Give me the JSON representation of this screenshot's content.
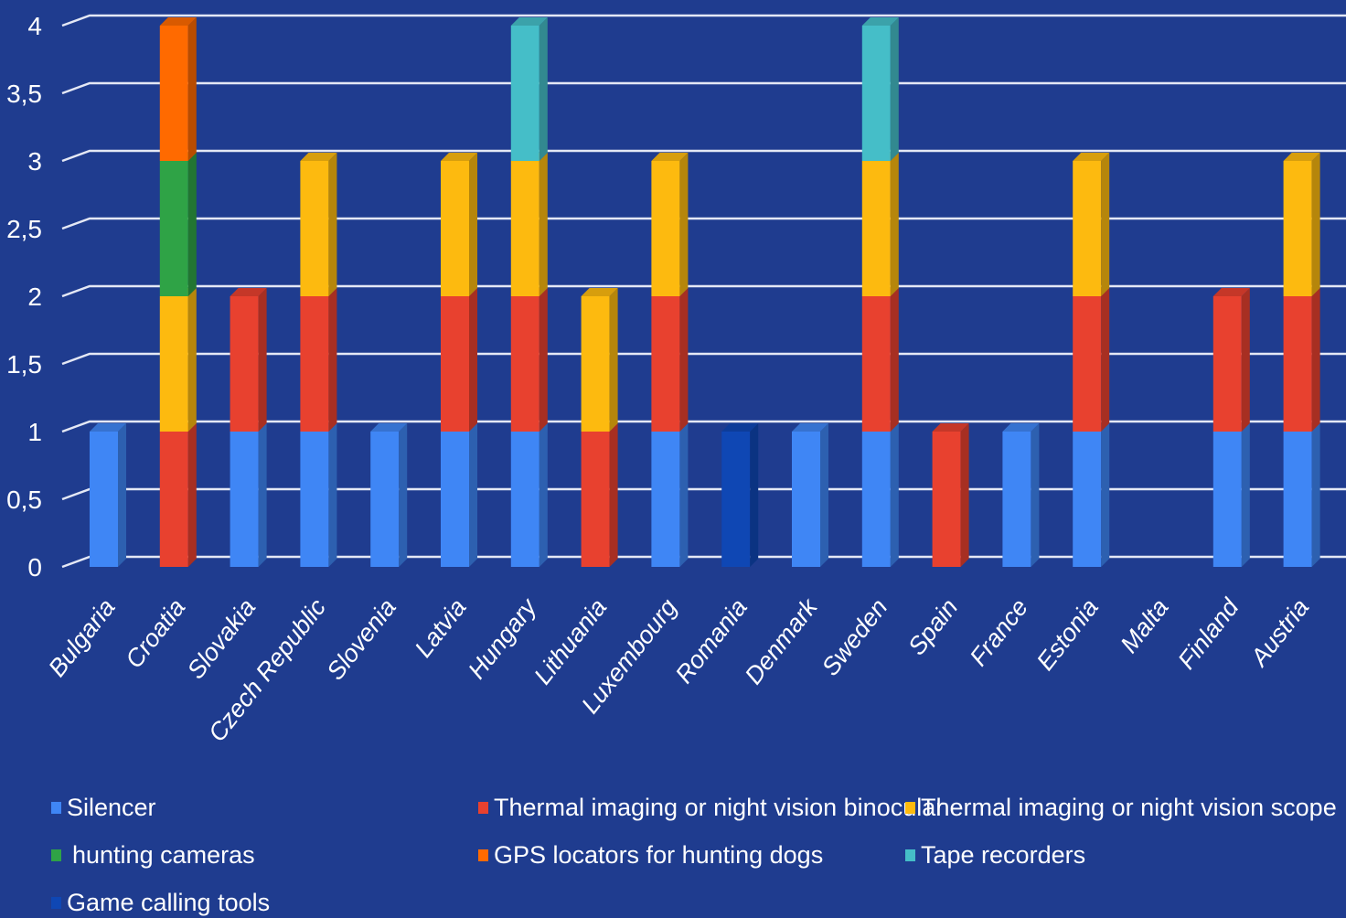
{
  "chart_data": {
    "type": "bar",
    "stacked": true,
    "title": "",
    "xlabel": "",
    "ylabel": "",
    "ylim": [
      0,
      4
    ],
    "yticks": [
      "0",
      "0,5",
      "1",
      "1,5",
      "2",
      "2,5",
      "3",
      "3,5",
      "4"
    ],
    "grid": true,
    "legend_position": "bottom",
    "categories": [
      "Bulgaria",
      "Croatia",
      "Slovakia",
      "Czech Republic",
      "Slovenia",
      "Latvia",
      "Hungary",
      "Lithuania",
      "Luxembourg",
      "Romania",
      "Denmark",
      "Sweden",
      "Spain",
      "France",
      "Estonia",
      "Malta",
      "Finland",
      "Austria"
    ],
    "series": [
      {
        "name": "Silencer",
        "color": "#3f86f5",
        "values": [
          1,
          0,
          1,
          1,
          1,
          1,
          1,
          0,
          1,
          0,
          1,
          1,
          0,
          1,
          1,
          0,
          1,
          1
        ]
      },
      {
        "name": "Thermal imaging or night vision binocular",
        "color": "#e8412f",
        "values": [
          0,
          1,
          1,
          1,
          0,
          1,
          1,
          1,
          1,
          0,
          0,
          1,
          1,
          0,
          1,
          0,
          1,
          1
        ]
      },
      {
        "name": "Thermal imaging or night vision scope",
        "color": "#fdba0f",
        "values": [
          0,
          1,
          0,
          1,
          0,
          1,
          1,
          1,
          1,
          0,
          0,
          1,
          0,
          0,
          1,
          0,
          0,
          1
        ]
      },
      {
        "name": "hunting cameras",
        "color": "#2fa346",
        "values": [
          0,
          1,
          0,
          0,
          0,
          0,
          0,
          0,
          0,
          0,
          0,
          0,
          0,
          0,
          0,
          0,
          0,
          0
        ]
      },
      {
        "name": "GPS locators for hunting dogs",
        "color": "#ff6a00",
        "values": [
          0,
          1,
          0,
          0,
          0,
          0,
          0,
          0,
          0,
          0,
          0,
          0,
          0,
          0,
          0,
          0,
          0,
          0
        ]
      },
      {
        "name": "Tape recorders",
        "color": "#45bec8",
        "values": [
          0,
          0,
          0,
          0,
          0,
          0,
          1,
          0,
          0,
          0,
          0,
          1,
          0,
          0,
          0,
          0,
          0,
          0
        ]
      },
      {
        "name": "Game calling tools",
        "color": "#0f47b4",
        "values": [
          0,
          0,
          0,
          0,
          0,
          0,
          0,
          0,
          0,
          1,
          0,
          0,
          0,
          0,
          0,
          0,
          0,
          0
        ]
      }
    ]
  }
}
